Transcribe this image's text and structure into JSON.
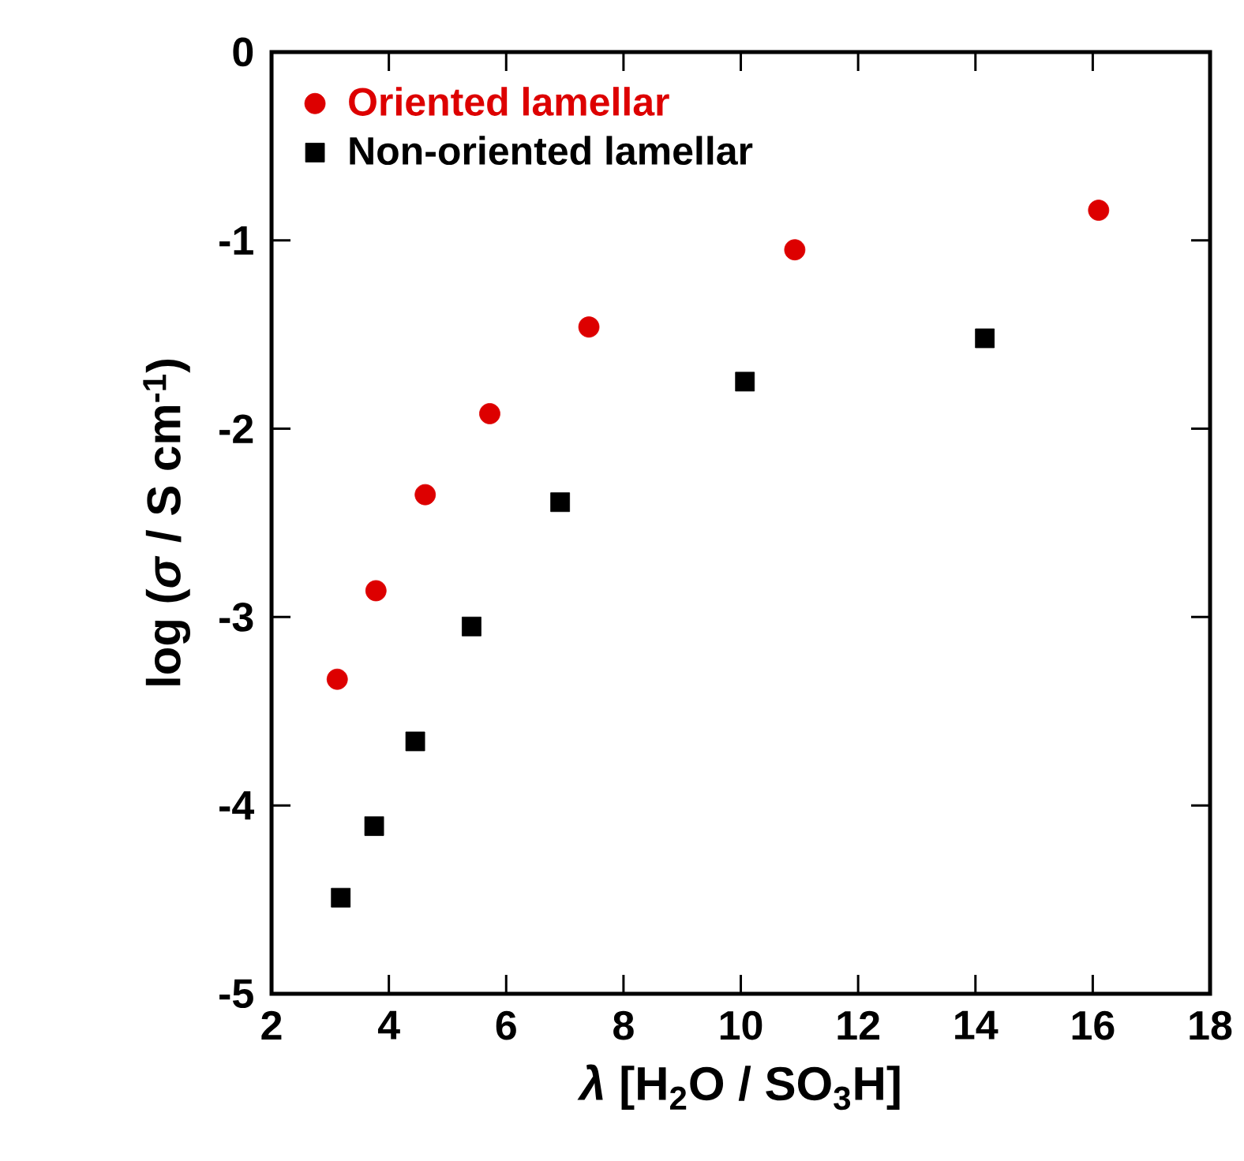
{
  "chart_data": {
    "type": "scatter",
    "xlabel": "*λ*  [H$_{2}$O / SO$_{3}$H]",
    "ylabel": "log (*σ* / S cm$^{-1}$)",
    "xlim": [
      2,
      18
    ],
    "xticks": [
      2,
      4,
      6,
      8,
      10,
      12,
      14,
      16,
      18
    ],
    "ylim": [
      -5,
      0
    ],
    "yticks": [
      -5,
      -4,
      -3,
      -2,
      -1,
      0
    ],
    "legend": "top left",
    "grid": false,
    "series": [
      {
        "name": "Oriented lamellar",
        "color": "#dd0000",
        "marker": "circle",
        "x": [
          3.12,
          3.78,
          4.62,
          5.72,
          7.41,
          10.92,
          16.1
        ],
        "values": [
          -3.33,
          -2.86,
          -2.35,
          -1.92,
          -1.46,
          -1.05,
          -0.84
        ]
      },
      {
        "name": "Non-oriented lamellar",
        "color": "#000000",
        "marker": "square",
        "x": [
          3.18,
          3.75,
          4.45,
          5.41,
          6.92,
          10.07,
          14.16
        ],
        "values": [
          -4.49,
          -4.11,
          -3.66,
          -3.05,
          -2.39,
          -1.75,
          -1.52
        ]
      }
    ]
  }
}
